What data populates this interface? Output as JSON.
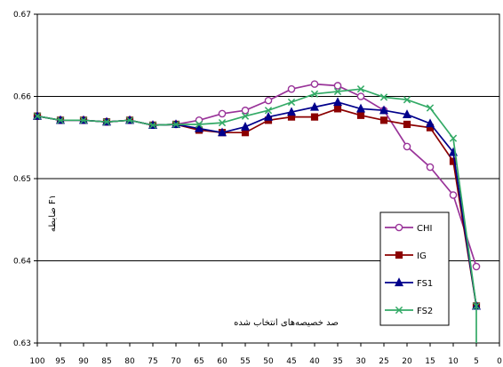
{
  "chart_data": {
    "type": "line",
    "title": "",
    "xlabel": "صد خصیصه‌های انتخاب شده",
    "ylabel": "F۱ ضابطه",
    "x": [
      100,
      95,
      90,
      85,
      80,
      75,
      70,
      65,
      60,
      55,
      50,
      45,
      40,
      35,
      30,
      25,
      20,
      15,
      10,
      5
    ],
    "x_ticks": [
      "100",
      "95",
      "90",
      "85",
      "80",
      "75",
      "70",
      "65",
      "60",
      "55",
      "50",
      "45",
      "40",
      "35",
      "30",
      "25",
      "20",
      "15",
      "10",
      "5",
      "0"
    ],
    "xlim": [
      100,
      0
    ],
    "ylim": [
      0.63,
      0.67
    ],
    "y_ticks": [
      "0.63",
      "0.64",
      "0.65",
      "0.66",
      "0.67"
    ],
    "grid": "horizontal",
    "legend_position": "bottom-right",
    "series": [
      {
        "name": "CHI",
        "color": "#993399",
        "marker": "circle",
        "values": [
          0.6576,
          0.6571,
          0.6571,
          0.6569,
          0.6571,
          0.6565,
          0.6566,
          0.6571,
          0.6579,
          0.6583,
          0.6595,
          0.6609,
          0.6615,
          0.6613,
          0.66,
          0.6583,
          0.6539,
          0.6514,
          0.648,
          0.6393
        ]
      },
      {
        "name": "IG",
        "color": "#8b0000",
        "marker": "square",
        "values": [
          0.6576,
          0.6571,
          0.6571,
          0.6569,
          0.6571,
          0.6565,
          0.6566,
          0.6559,
          0.6556,
          0.6556,
          0.6571,
          0.6575,
          0.6575,
          0.6585,
          0.6577,
          0.6571,
          0.6566,
          0.6562,
          0.6521,
          0.6345
        ]
      },
      {
        "name": "FS1",
        "color": "#00008b",
        "marker": "triangle",
        "values": [
          0.6576,
          0.6571,
          0.6571,
          0.6569,
          0.6571,
          0.6565,
          0.6566,
          0.6561,
          0.6556,
          0.6563,
          0.6575,
          0.6581,
          0.6587,
          0.6593,
          0.6585,
          0.6583,
          0.6578,
          0.6567,
          0.6532,
          0.6345
        ]
      },
      {
        "name": "FS2",
        "color": "#33aa66",
        "marker": "x",
        "values": [
          0.6576,
          0.6571,
          0.6571,
          0.6569,
          0.6571,
          0.6565,
          0.6566,
          0.6566,
          0.6568,
          0.6576,
          0.6583,
          0.6593,
          0.6603,
          0.6606,
          0.6609,
          0.6599,
          0.6596,
          0.6586,
          0.6549,
          0.6345
        ]
      }
    ],
    "drop_tail": {
      "x": 5,
      "y": 0.63
    }
  }
}
